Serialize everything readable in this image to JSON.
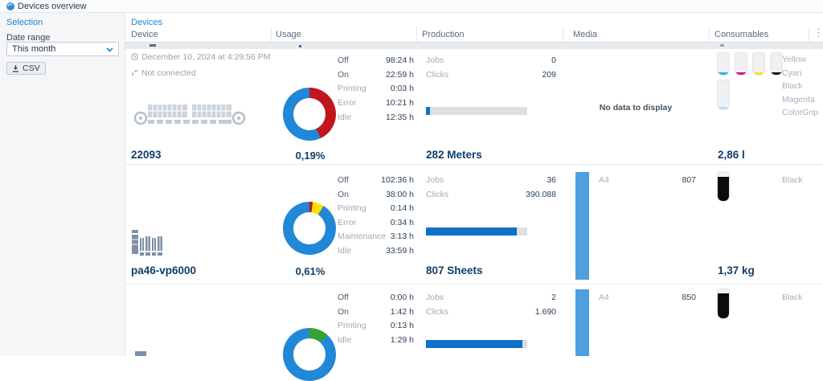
{
  "topbar": {
    "title": "Devices overview"
  },
  "sidebar": {
    "title": "Selection",
    "date_range_label": "Date range",
    "date_range_value": "This month",
    "csv_label": "CSV"
  },
  "panel": {
    "title": "Devices"
  },
  "columns": {
    "device": "Device",
    "usage": "Usage",
    "production": "Production",
    "media": "Media",
    "consumables": "Consumables"
  },
  "icons": {
    "more": "⋮"
  },
  "prod_labels": {
    "jobs": "Jobs",
    "clicks": "Clicks"
  },
  "rows": [
    {
      "name": "22093",
      "timestamp": "December 10, 2024 at 4:29:56 PM",
      "connection_status": "Not connected",
      "usage": {
        "percent": "0,19%",
        "donut": [
          {
            "color": "#c0161d",
            "pct": 43
          },
          {
            "color": "#2187d7",
            "pct": 57
          }
        ],
        "stats": [
          {
            "label": "Off",
            "value": "98:24 h"
          },
          {
            "label": "On",
            "value": "22:59 h"
          },
          {
            "label": "Printing",
            "value": "0:03 h"
          },
          {
            "label": "Error",
            "value": "10:21 h"
          },
          {
            "label": "Idle",
            "value": "12:35 h"
          }
        ]
      },
      "production": {
        "jobs": "0",
        "clicks": "209",
        "bar_pct": 4,
        "total": "282 Meters"
      },
      "media": {
        "empty": "No data to display"
      },
      "consumables": {
        "total": "2,86 l",
        "labels": [
          "Yellow",
          "Cyan",
          "Black",
          "Magenta",
          "ColorGrip"
        ],
        "tanks": [
          {
            "color": "#29b4e8",
            "pct": 11
          },
          {
            "color": "#e5007e",
            "pct": 11
          },
          {
            "color": "#f6e70c",
            "pct": 11
          },
          {
            "color": "#141414",
            "pct": 11
          },
          {
            "color": "#b5e2f4",
            "pct": 9
          }
        ]
      }
    },
    {
      "name": "pa46-vp6000",
      "usage": {
        "percent": "0,61%",
        "donut": [
          {
            "color": "#c0161d",
            "pct": 2
          },
          {
            "color": "#ffe000",
            "pct": 7
          },
          {
            "color": "#2187d7",
            "pct": 91
          }
        ],
        "stats": [
          {
            "label": "Off",
            "value": "102:36 h"
          },
          {
            "label": "On",
            "value": "38:00 h"
          },
          {
            "label": "Printing",
            "value": "0:14 h"
          },
          {
            "label": "Error",
            "value": "0:34 h"
          },
          {
            "label": "Maintenance",
            "value": "3:13 h"
          },
          {
            "label": "Idle",
            "value": "33:59 h"
          }
        ]
      },
      "production": {
        "jobs": "36",
        "clicks": "390.088",
        "bar_pct": 90,
        "total": "807 Sheets"
      },
      "media": {
        "label": "A4",
        "value": "807"
      },
      "consumables": {
        "total": "1,37 kg",
        "labels": [
          "Black"
        ],
        "tanks": [
          {
            "color": "#0b0b0b",
            "pct": 82
          }
        ]
      }
    },
    {
      "usage": {
        "donut": [
          {
            "color": "#35a233",
            "pct": 12
          },
          {
            "color": "#2187d7",
            "pct": 88
          }
        ],
        "stats": [
          {
            "label": "Off",
            "value": "0:00 h"
          },
          {
            "label": "On",
            "value": "1:42 h"
          },
          {
            "label": "Printing",
            "value": "0:13 h"
          },
          {
            "label": "Idle",
            "value": "1:29 h"
          }
        ]
      },
      "production": {
        "jobs": "2",
        "clicks": "1.690",
        "bar_pct": 95
      },
      "media": {
        "label": "A4",
        "value": "850"
      },
      "consumables": {
        "labels": [
          "Black"
        ],
        "tanks": [
          {
            "color": "#0b0b0b",
            "pct": 86
          }
        ]
      }
    }
  ]
}
